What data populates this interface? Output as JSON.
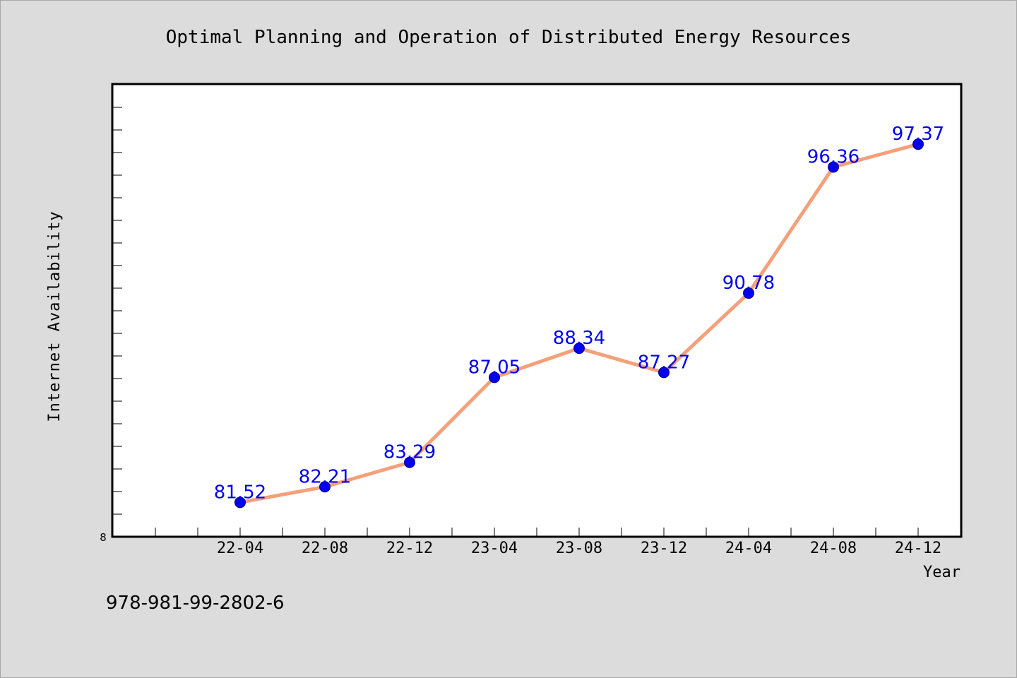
{
  "chart_data": {
    "type": "line",
    "title": "Optimal Planning and Operation of Distributed Energy Resources",
    "xlabel": "Year",
    "ylabel": "Internet Availability",
    "categories": [
      "22-04",
      "22-08",
      "22-12",
      "23-04",
      "23-08",
      "23-12",
      "24-04",
      "24-08",
      "24-12"
    ],
    "values": [
      81.52,
      82.21,
      83.29,
      87.05,
      88.34,
      87.27,
      90.78,
      96.36,
      97.37
    ],
    "data_labels": [
      "81.52",
      "82.21",
      "83.29",
      "87.05",
      "88.34",
      "87.27",
      "90.78",
      "96.36",
      "97.37"
    ],
    "y_tick_label": "8",
    "ylim": [
      80,
      100
    ],
    "grid": false,
    "legend": "none",
    "colors": {
      "line": "#f4a07a",
      "marker": "#0000ee",
      "data_label": "#0000ee",
      "plot_background": "#ffffff",
      "page_background": "#dcdcdc"
    }
  },
  "footer": {
    "isbn": "978-981-99-2802-6"
  }
}
